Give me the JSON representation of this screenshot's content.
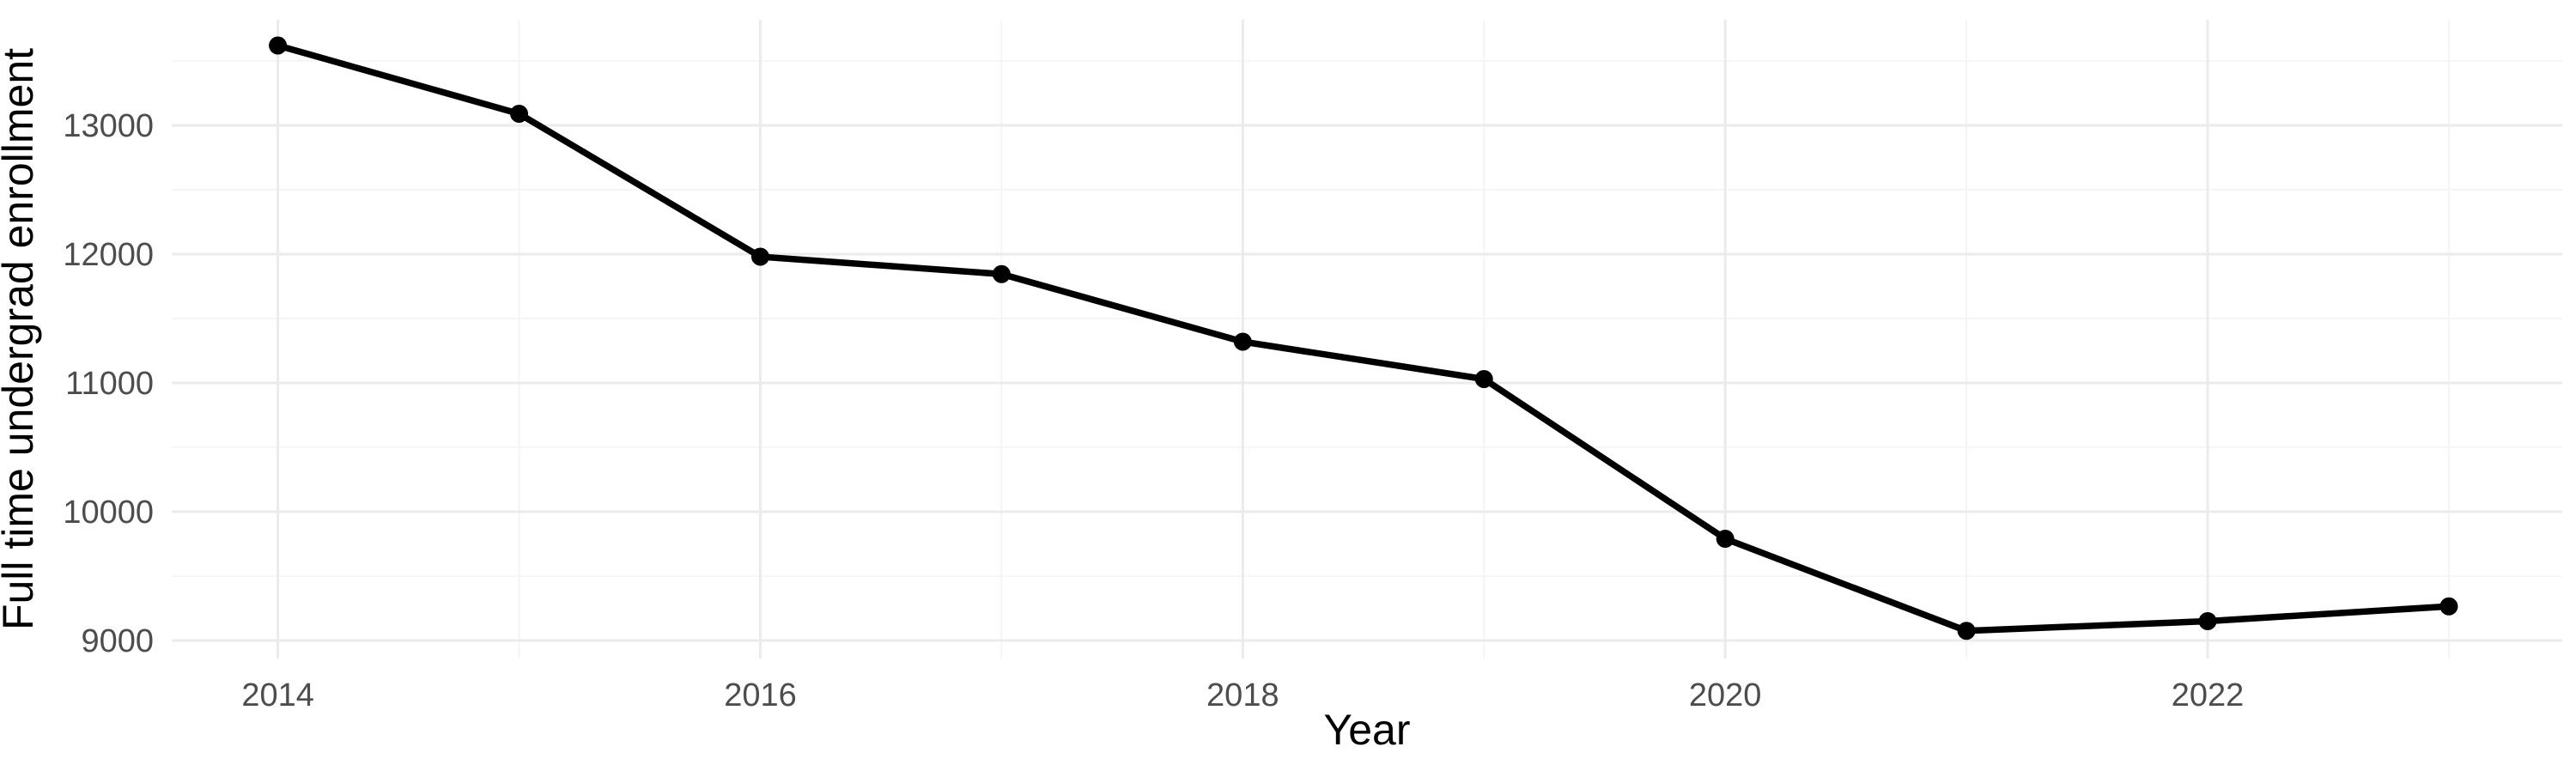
{
  "figure": {
    "title": "",
    "xlabel": "Year",
    "ylabel": "Full time undergrad enrollment"
  },
  "chart_data": {
    "type": "line",
    "title": "",
    "xlabel": "Year",
    "ylabel": "Full time undergrad enrollment",
    "x": [
      2014,
      2015,
      2016,
      2017,
      2018,
      2019,
      2020,
      2021,
      2022,
      2023
    ],
    "series": [
      {
        "name": "Full time undergrad enrollment",
        "values": [
          13620,
          13090,
          11980,
          11845,
          11320,
          11030,
          9790,
          9075,
          9150,
          9265
        ]
      }
    ],
    "x_ticks_major": [
      2014,
      2016,
      2018,
      2020,
      2022
    ],
    "x_ticks_minor": [
      2015,
      2017,
      2019,
      2021,
      2023
    ],
    "y_ticks_major": [
      9000,
      10000,
      11000,
      12000,
      13000
    ],
    "y_ticks_minor": [
      9500,
      10500,
      11500,
      12500,
      13500
    ],
    "xlim": [
      2013.56,
      2023.47
    ],
    "ylim": [
      8860,
      13820
    ],
    "grid": true,
    "legend_position": "none",
    "marker": "point",
    "colors": {
      "line": "#000000",
      "point": "#000000",
      "grid_major": "#ebebeb",
      "grid_minor": "#f4f4f4",
      "tick_text": "#4d4d4d",
      "axis_title_text": "#000000",
      "panel_background": "#ffffff"
    }
  }
}
